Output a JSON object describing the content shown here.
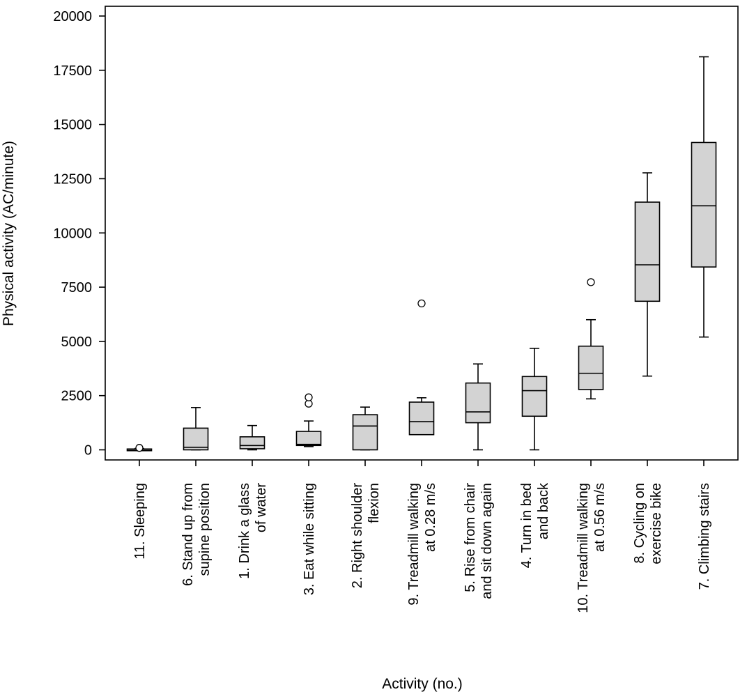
{
  "chart_data": {
    "type": "boxplot",
    "xlabel": "Activity (no.)",
    "ylabel": "Physical activity (AC/minute)",
    "ylim": [
      -500,
      20500
    ],
    "yticks": [
      0,
      2500,
      5000,
      7500,
      10000,
      12500,
      15000,
      17500,
      20000
    ],
    "ytick_labels": [
      "0",
      "2500",
      "5000",
      "7500",
      "10000",
      "12500",
      "15000",
      "17500",
      "20000"
    ],
    "box_color": "#d3d3d3",
    "categories": [
      {
        "lines": [
          "11. Sleeping"
        ],
        "whisker_low": 0,
        "q1": 0,
        "median": 20,
        "q3": 40,
        "whisker_high": 60,
        "outliers": [
          90
        ]
      },
      {
        "lines": [
          "6. Stand up from",
          "supine position"
        ],
        "whisker_low": 0,
        "q1": 0,
        "median": 120,
        "q3": 1000,
        "whisker_high": 1950,
        "outliers": []
      },
      {
        "lines": [
          "1. Drink a glass",
          "of water"
        ],
        "whisker_low": 0,
        "q1": 50,
        "median": 200,
        "q3": 600,
        "whisker_high": 1120,
        "outliers": []
      },
      {
        "lines": [
          "3. Eat while sitting"
        ],
        "whisker_low": 150,
        "q1": 200,
        "median": 250,
        "q3": 850,
        "whisker_high": 1330,
        "outliers": [
          2130,
          2420
        ]
      },
      {
        "lines": [
          "2. Right shoulder",
          "flexion"
        ],
        "whisker_low": 0,
        "q1": 0,
        "median": 1100,
        "q3": 1620,
        "whisker_high": 1970,
        "outliers": []
      },
      {
        "lines": [
          "9. Treadmill walking",
          "at 0.28 m/s"
        ],
        "whisker_low": 700,
        "q1": 700,
        "median": 1300,
        "q3": 2200,
        "whisker_high": 2400,
        "outliers": [
          6750
        ]
      },
      {
        "lines": [
          "5. Rise from chair",
          "and sit down again"
        ],
        "whisker_low": 0,
        "q1": 1250,
        "median": 1750,
        "q3": 3080,
        "whisker_high": 3960,
        "outliers": []
      },
      {
        "lines": [
          "4. Turn in bed",
          "and back"
        ],
        "whisker_low": 0,
        "q1": 1550,
        "median": 2730,
        "q3": 3380,
        "whisker_high": 4680,
        "outliers": []
      },
      {
        "lines": [
          "10. Treadmill walking",
          "at 0.56 m/s"
        ],
        "whisker_low": 2350,
        "q1": 2780,
        "median": 3530,
        "q3": 4780,
        "whisker_high": 6000,
        "outliers": [
          7730
        ]
      },
      {
        "lines": [
          "8. Cycling on",
          "exercise bike"
        ],
        "whisker_low": 3400,
        "q1": 6850,
        "median": 8530,
        "q3": 11420,
        "whisker_high": 12770,
        "outliers": []
      },
      {
        "lines": [
          "7. Climbing stairs"
        ],
        "whisker_low": 5200,
        "q1": 8430,
        "median": 11250,
        "q3": 14170,
        "whisker_high": 18120,
        "outliers": []
      }
    ]
  }
}
